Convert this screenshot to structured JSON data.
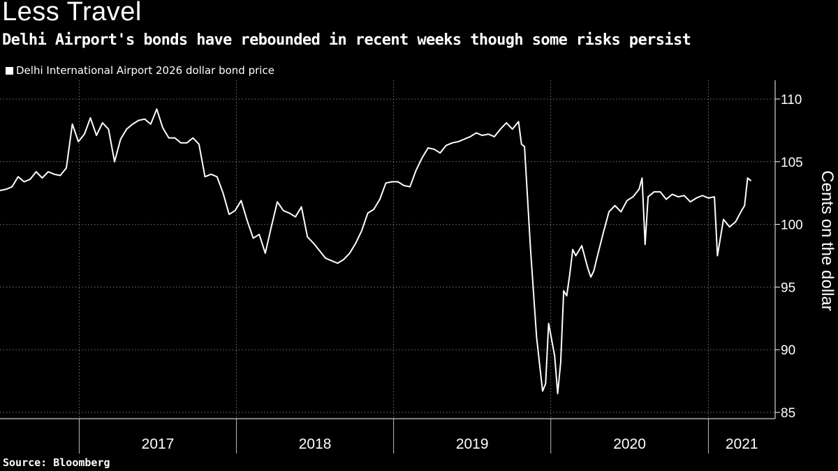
{
  "title": "Less Travel",
  "subtitle": "Delhi Airport's bonds have rebounded in recent weeks though some risks persist",
  "source": "Source: Bloomberg",
  "chart_data": {
    "type": "line",
    "title": "Less Travel",
    "subtitle": "Delhi Airport's bonds have rebounded in recent weeks though some risks persist",
    "ylabel": "Cents on the dollar",
    "xlabel": "",
    "ylim": [
      84.5,
      111.5
    ],
    "xlim": [
      "2016-07-01",
      "2021-06-05"
    ],
    "yticks": [
      85,
      90,
      95,
      100,
      105,
      110
    ],
    "xticks": [
      "2017",
      "2018",
      "2019",
      "2020",
      "2021"
    ],
    "grid": true,
    "legend_position": "top-left",
    "line_color": "#ffffff",
    "series": [
      {
        "name": "Delhi International Airport 2026 dollar bond price",
        "points": [
          [
            "2016-07-01",
            102.7
          ],
          [
            "2016-07-15",
            102.8
          ],
          [
            "2016-07-29",
            103.0
          ],
          [
            "2016-08-12",
            103.8
          ],
          [
            "2016-08-26",
            103.4
          ],
          [
            "2016-09-09",
            103.6
          ],
          [
            "2016-09-23",
            104.2
          ],
          [
            "2016-10-07",
            103.7
          ],
          [
            "2016-10-21",
            104.2
          ],
          [
            "2016-11-04",
            104.0
          ],
          [
            "2016-11-18",
            103.9
          ],
          [
            "2016-12-02",
            104.5
          ],
          [
            "2016-12-16",
            108.0
          ],
          [
            "2016-12-30",
            106.6
          ],
          [
            "2017-01-13",
            107.2
          ],
          [
            "2017-01-27",
            108.5
          ],
          [
            "2017-02-10",
            107.1
          ],
          [
            "2017-02-24",
            108.1
          ],
          [
            "2017-03-10",
            107.6
          ],
          [
            "2017-03-24",
            105.0
          ],
          [
            "2017-04-07",
            106.8
          ],
          [
            "2017-04-21",
            107.6
          ],
          [
            "2017-05-05",
            108.0
          ],
          [
            "2017-05-19",
            108.3
          ],
          [
            "2017-06-02",
            108.4
          ],
          [
            "2017-06-16",
            108.0
          ],
          [
            "2017-06-30",
            109.2
          ],
          [
            "2017-07-14",
            107.7
          ],
          [
            "2017-07-28",
            106.9
          ],
          [
            "2017-08-11",
            106.9
          ],
          [
            "2017-08-25",
            106.5
          ],
          [
            "2017-09-08",
            106.5
          ],
          [
            "2017-09-22",
            106.9
          ],
          [
            "2017-10-06",
            106.4
          ],
          [
            "2017-10-20",
            103.8
          ],
          [
            "2017-11-03",
            104.0
          ],
          [
            "2017-11-17",
            103.8
          ],
          [
            "2017-12-01",
            102.5
          ],
          [
            "2017-12-15",
            100.8
          ],
          [
            "2017-12-29",
            101.1
          ],
          [
            "2018-01-12",
            101.9
          ],
          [
            "2018-01-26",
            100.3
          ],
          [
            "2018-02-09",
            98.9
          ],
          [
            "2018-02-23",
            99.2
          ],
          [
            "2018-03-09",
            97.7
          ],
          [
            "2018-03-23",
            99.8
          ],
          [
            "2018-04-06",
            101.8
          ],
          [
            "2018-04-20",
            101.1
          ],
          [
            "2018-05-04",
            100.9
          ],
          [
            "2018-05-18",
            100.6
          ],
          [
            "2018-06-01",
            101.4
          ],
          [
            "2018-06-15",
            99.0
          ],
          [
            "2018-06-29",
            98.5
          ],
          [
            "2018-07-13",
            97.9
          ],
          [
            "2018-07-27",
            97.3
          ],
          [
            "2018-08-10",
            97.1
          ],
          [
            "2018-08-24",
            96.9
          ],
          [
            "2018-09-07",
            97.2
          ],
          [
            "2018-09-21",
            97.7
          ],
          [
            "2018-10-05",
            98.5
          ],
          [
            "2018-10-19",
            99.5
          ],
          [
            "2018-11-02",
            100.9
          ],
          [
            "2018-11-16",
            101.2
          ],
          [
            "2018-11-30",
            102.0
          ],
          [
            "2018-12-14",
            103.3
          ],
          [
            "2018-12-28",
            103.4
          ],
          [
            "2019-01-11",
            103.4
          ],
          [
            "2019-01-25",
            103.1
          ],
          [
            "2019-02-08",
            103.0
          ],
          [
            "2019-02-22",
            104.3
          ],
          [
            "2019-03-08",
            105.3
          ],
          [
            "2019-03-22",
            106.1
          ],
          [
            "2019-04-05",
            106.0
          ],
          [
            "2019-04-19",
            105.7
          ],
          [
            "2019-05-03",
            106.3
          ],
          [
            "2019-05-17",
            106.5
          ],
          [
            "2019-05-31",
            106.6
          ],
          [
            "2019-06-14",
            106.8
          ],
          [
            "2019-06-28",
            107.0
          ],
          [
            "2019-07-12",
            107.3
          ],
          [
            "2019-07-26",
            107.1
          ],
          [
            "2019-08-09",
            107.2
          ],
          [
            "2019-08-23",
            107.0
          ],
          [
            "2019-09-06",
            107.6
          ],
          [
            "2019-09-20",
            108.1
          ],
          [
            "2019-10-04",
            107.6
          ],
          [
            "2019-10-18",
            108.2
          ],
          [
            "2019-10-25",
            106.4
          ],
          [
            "2019-11-01",
            106.2
          ],
          [
            "2019-11-15",
            98.0
          ],
          [
            "2019-11-29",
            91.0
          ],
          [
            "2019-12-13",
            86.7
          ],
          [
            "2019-12-20",
            87.3
          ],
          [
            "2019-12-27",
            92.1
          ],
          [
            "2020-01-10",
            89.5
          ],
          [
            "2020-01-17",
            86.5
          ],
          [
            "2020-01-24",
            89.0
          ],
          [
            "2020-01-31",
            94.7
          ],
          [
            "2020-02-07",
            94.3
          ],
          [
            "2020-02-14",
            96.0
          ],
          [
            "2020-02-21",
            98.0
          ],
          [
            "2020-02-28",
            97.5
          ],
          [
            "2020-03-13",
            98.3
          ],
          [
            "2020-03-27",
            96.5
          ],
          [
            "2020-04-03",
            95.8
          ],
          [
            "2020-04-10",
            96.3
          ],
          [
            "2020-04-17",
            97.3
          ],
          [
            "2020-05-01",
            99.2
          ],
          [
            "2020-05-15",
            101.0
          ],
          [
            "2020-05-29",
            101.5
          ],
          [
            "2020-06-12",
            101.0
          ],
          [
            "2020-06-26",
            101.9
          ],
          [
            "2020-07-10",
            102.2
          ],
          [
            "2020-07-24",
            102.8
          ],
          [
            "2020-07-31",
            103.7
          ],
          [
            "2020-08-07",
            98.4
          ],
          [
            "2020-08-14",
            102.2
          ],
          [
            "2020-08-28",
            102.6
          ],
          [
            "2020-09-11",
            102.6
          ],
          [
            "2020-09-25",
            102.0
          ],
          [
            "2020-10-09",
            102.4
          ],
          [
            "2020-10-23",
            102.2
          ],
          [
            "2020-11-06",
            102.3
          ],
          [
            "2020-11-20",
            101.8
          ],
          [
            "2020-12-04",
            102.1
          ],
          [
            "2020-12-18",
            102.3
          ],
          [
            "2021-01-01",
            102.1
          ],
          [
            "2021-01-15",
            102.2
          ],
          [
            "2021-01-22",
            97.5
          ],
          [
            "2021-02-05",
            100.4
          ],
          [
            "2021-02-19",
            99.8
          ],
          [
            "2021-03-05",
            100.2
          ],
          [
            "2021-03-19",
            101.1
          ],
          [
            "2021-03-26",
            101.5
          ],
          [
            "2021-04-02",
            103.7
          ],
          [
            "2021-04-09",
            103.5
          ]
        ]
      }
    ]
  }
}
